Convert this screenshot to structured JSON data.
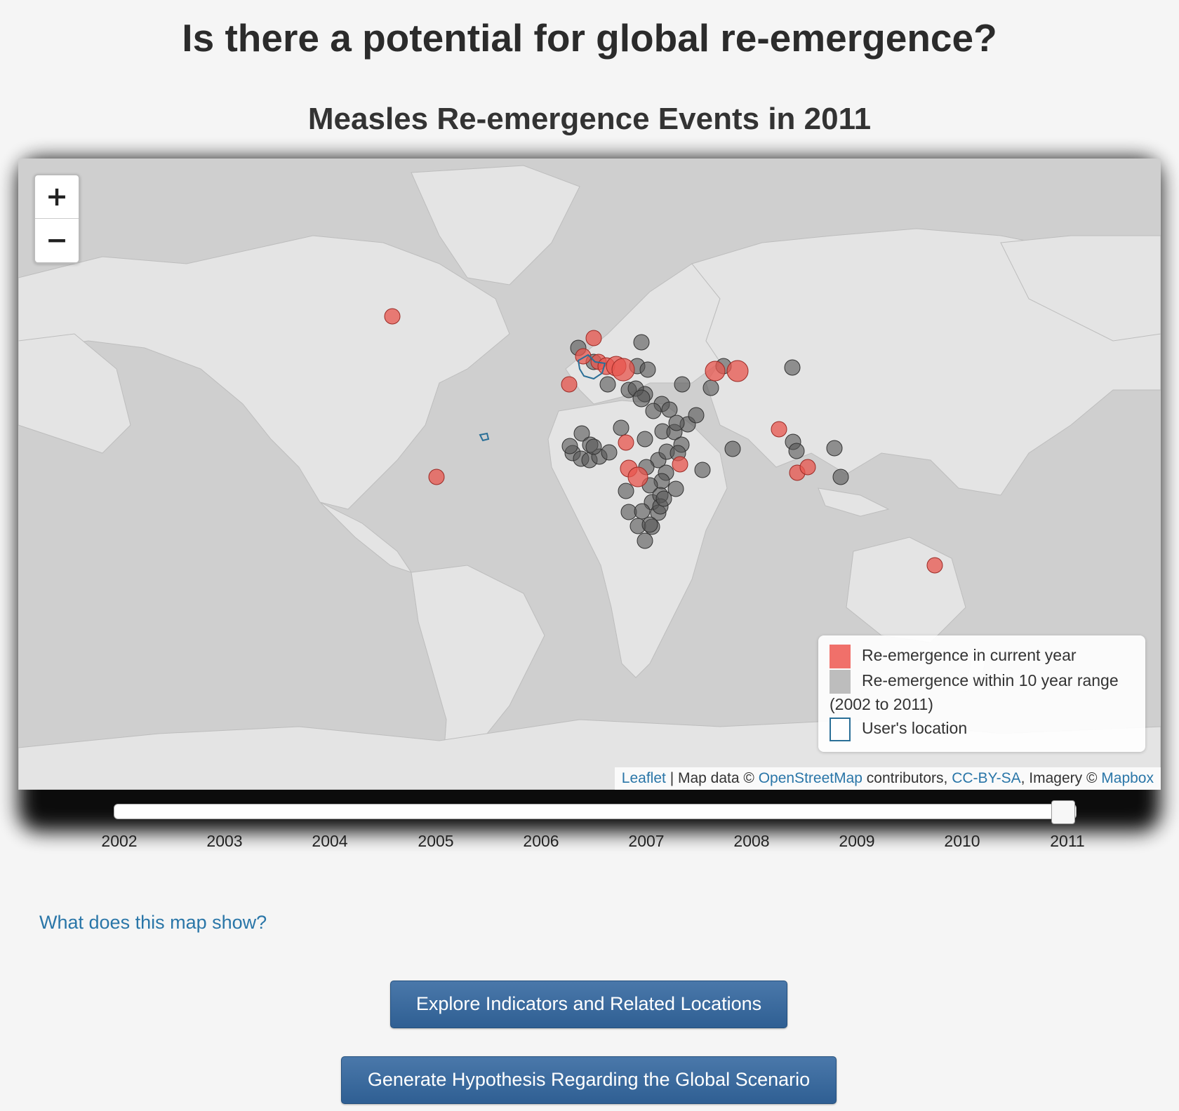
{
  "page": {
    "title": "Is there a potential for global re-emergence?",
    "subtitle": "Measles Re-emergence Events in 2011"
  },
  "map": {
    "zoom_in": "+",
    "zoom_out": "−",
    "legend": {
      "current": "Re-emergence in current year",
      "range": "Re-emergence within 10 year range",
      "range_years": "(2002 to 2011)",
      "user": "User's location"
    },
    "attribution": {
      "leaflet": "Leaflet",
      "sep1": " | Map data © ",
      "osm": "OpenStreetMap",
      "contrib": " contributors, ",
      "license": "CC-BY-SA",
      "imagery": ", Imagery © ",
      "mapbox": "Mapbox"
    },
    "colors": {
      "current": "#e8554e",
      "range": "#555555",
      "user": "#2a6f97",
      "land": "#e4e4e4",
      "water": "#cfcfcf"
    }
  },
  "slider": {
    "years": [
      "2002",
      "2003",
      "2004",
      "2005",
      "2006",
      "2007",
      "2008",
      "2009",
      "2010",
      "2011"
    ],
    "selected": "2011"
  },
  "help_link": "What does this map show?",
  "buttons": {
    "explore": "Explore Indicators and Related Locations",
    "hypothesis": "Generate Hypothesis Regarding the Global Scenario"
  }
}
